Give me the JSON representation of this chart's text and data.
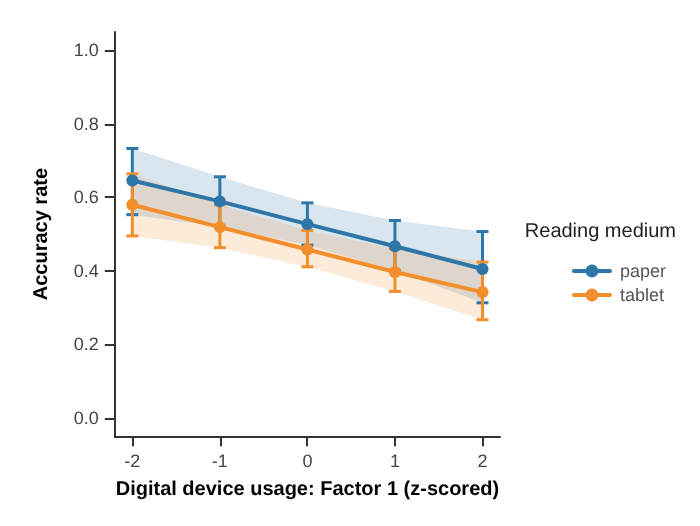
{
  "chart_data": {
    "type": "line",
    "xlabel": "Digital device usage: Factor 1 (z-scored)",
    "ylabel": "Accuracy rate",
    "legend_title": "Reading medium",
    "legend": "right",
    "marker": "circle",
    "grid": false,
    "x": [
      -2,
      -1,
      0,
      1,
      2
    ],
    "xlim": [
      -2.2,
      2.2
    ],
    "xticks": [
      -2,
      -1,
      0,
      1,
      2
    ],
    "ylim": [
      -0.05,
      1.05
    ],
    "yticks": [
      {
        "value": 0,
        "label": "0.0"
      },
      0.2,
      0.4,
      0.6,
      0.8,
      {
        "value": 1,
        "label": "1.0"
      }
    ],
    "series": [
      {
        "name": "paper",
        "color": "#2e75a8",
        "values": [
          0.646,
          0.589,
          0.527,
          0.467,
          0.405
        ],
        "errors": [
          [
            0.553,
            0.733
          ],
          [
            0.52,
            0.656
          ],
          [
            0.47,
            0.585
          ],
          [
            0.4,
            0.537
          ],
          [
            0.313,
            0.507
          ]
        ],
        "lower": [
          0.553,
          0.52,
          0.47,
          0.4,
          0.313
        ],
        "upper": [
          0.733,
          0.656,
          0.585,
          0.537,
          0.507
        ]
      },
      {
        "name": "tablet",
        "color": "#f28e2b",
        "values": [
          0.58,
          0.519,
          0.458,
          0.397,
          0.342
        ],
        "errors": [
          [
            0.495,
            0.664
          ],
          [
            0.463,
            0.58
          ],
          [
            0.411,
            0.51
          ],
          [
            0.344,
            0.46
          ],
          [
            0.267,
            0.424
          ]
        ],
        "lower": [
          0.495,
          0.463,
          0.411,
          0.344,
          0.267
        ],
        "upper": [
          0.664,
          0.58,
          0.51,
          0.46,
          0.424
        ]
      }
    ]
  }
}
